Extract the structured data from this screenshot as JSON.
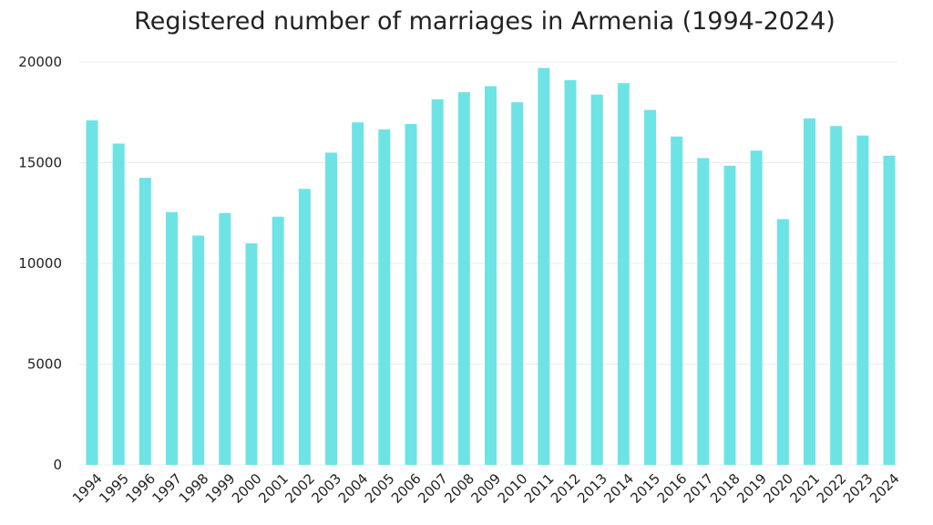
{
  "chart_data": {
    "type": "bar",
    "title": "Registered number of marriages in Armenia (1994-2024)",
    "xlabel": "",
    "ylabel": "",
    "ylim": [
      0,
      20000
    ],
    "yticks": [
      "0",
      "5000",
      "10000",
      "15000",
      "20000"
    ],
    "grid": true,
    "legend": "none",
    "bar_color": "#6ee3e6",
    "categories": [
      "1994",
      "1995",
      "1996",
      "1997",
      "1998",
      "1999",
      "2000",
      "2001",
      "2002",
      "2003",
      "2004",
      "2005",
      "2006",
      "2007",
      "2008",
      "2009",
      "2010",
      "2011",
      "2012",
      "2013",
      "2014",
      "2015",
      "2016",
      "2017",
      "2018",
      "2019",
      "2020",
      "2021",
      "2022",
      "2023",
      "2024"
    ],
    "values": [
      17100,
      15950,
      14250,
      12550,
      11380,
      12500,
      11000,
      12320,
      13700,
      15500,
      17000,
      16650,
      16920,
      18150,
      18500,
      18800,
      18000,
      19700,
      19100,
      18380,
      18950,
      17620,
      16300,
      15230,
      14850,
      15600,
      12200,
      17200,
      16820,
      16350,
      15350
    ]
  }
}
